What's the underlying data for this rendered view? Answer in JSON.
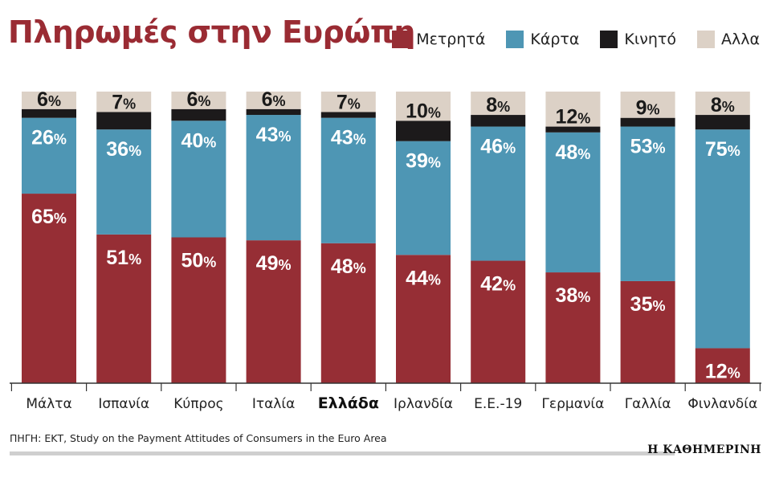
{
  "chart_data": {
    "type": "bar",
    "stacked": true,
    "title": "Πληρωμές στην Ευρώπη",
    "categories": [
      "Μάλτα",
      "Ισπανία",
      "Κύπρος",
      "Ιταλία",
      "Ελλάδα",
      "Ιρλανδία",
      "Ε.Ε.-19",
      "Γερμανία",
      "Γαλλία",
      "Φινλανδία"
    ],
    "highlight_category": "Ελλάδα",
    "percent_sign": "%",
    "series": [
      {
        "name": "Μετρητά",
        "color": "#962e35",
        "values": [
          65,
          51,
          50,
          49,
          48,
          44,
          42,
          38,
          35,
          12
        ],
        "labeled": true
      },
      {
        "name": "Κάρτα",
        "color": "#4e96b4",
        "values": [
          26,
          36,
          40,
          43,
          43,
          39,
          46,
          48,
          53,
          75
        ],
        "labeled": true
      },
      {
        "name": "Κινητό",
        "color": "#1c1a1b",
        "values": [
          3,
          6,
          4,
          2,
          2,
          7,
          4,
          2,
          3,
          5
        ],
        "labeled": false
      },
      {
        "name": "Αλλα",
        "color": "#dcd1c6",
        "values": [
          6,
          7,
          6,
          6,
          7,
          10,
          8,
          12,
          9,
          8
        ],
        "labeled": true
      }
    ],
    "ylim": [
      0,
      100
    ],
    "legend_position": "top-right",
    "grid": false,
    "source": "ΠΗΓΗ: ΕΚΤ, Study on the Payment Attitudes of Consumers in the Euro Area",
    "publisher": "Η ΚΑΘΗΜΕΡΙΝΗ"
  }
}
